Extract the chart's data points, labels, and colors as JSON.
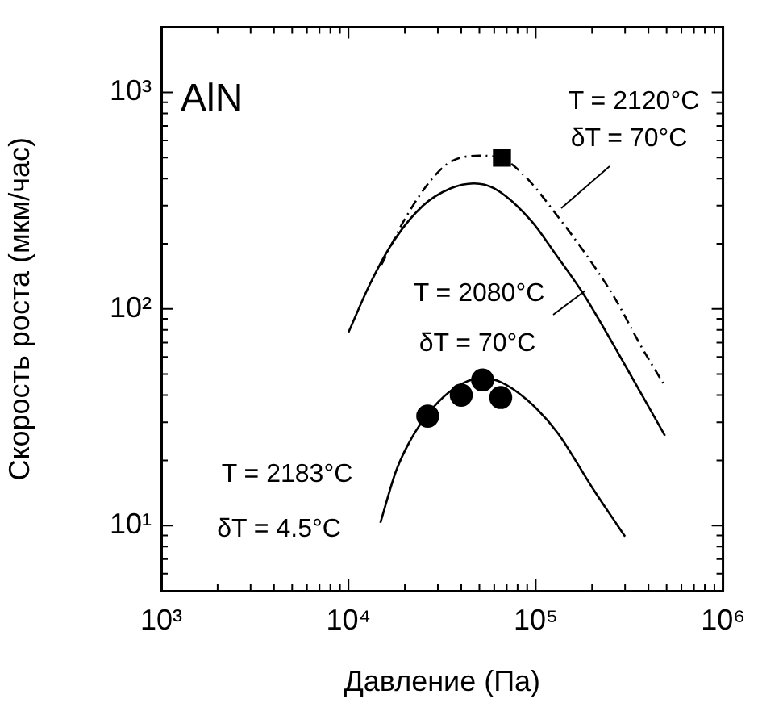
{
  "chart_data": {
    "type": "line",
    "xlabel": "Давление (Па)",
    "ylabel": "Скорость роста (мкм/час)",
    "log": "xy",
    "xlim": [
      1000,
      1000000
    ],
    "ylim": [
      5,
      2000
    ],
    "xticks": [
      {
        "value": 1000,
        "label": "10³"
      },
      {
        "value": 2000,
        "label": null
      },
      {
        "value": 3000,
        "label": null
      },
      {
        "value": 4000,
        "label": null
      },
      {
        "value": 5000,
        "label": null
      },
      {
        "value": 6000,
        "label": null
      },
      {
        "value": 7000,
        "label": null
      },
      {
        "value": 8000,
        "label": null
      },
      {
        "value": 9000,
        "label": null
      },
      {
        "value": 10000,
        "label": "10⁴"
      },
      {
        "value": 20000,
        "label": null
      },
      {
        "value": 30000,
        "label": null
      },
      {
        "value": 40000,
        "label": null
      },
      {
        "value": 50000,
        "label": null
      },
      {
        "value": 60000,
        "label": null
      },
      {
        "value": 70000,
        "label": null
      },
      {
        "value": 80000,
        "label": null
      },
      {
        "value": 90000,
        "label": null
      },
      {
        "value": 100000,
        "label": "10⁵"
      },
      {
        "value": 200000,
        "label": null
      },
      {
        "value": 300000,
        "label": null
      },
      {
        "value": 400000,
        "label": null
      },
      {
        "value": 500000,
        "label": null
      },
      {
        "value": 600000,
        "label": null
      },
      {
        "value": 700000,
        "label": null
      },
      {
        "value": 800000,
        "label": null
      },
      {
        "value": 900000,
        "label": null
      },
      {
        "value": 1000000,
        "label": "10⁶"
      }
    ],
    "yticks": [
      {
        "value": 5,
        "label": null
      },
      {
        "value": 6,
        "label": null
      },
      {
        "value": 7,
        "label": null
      },
      {
        "value": 8,
        "label": null
      },
      {
        "value": 9,
        "label": null
      },
      {
        "value": 10,
        "label": "10¹"
      },
      {
        "value": 20,
        "label": null
      },
      {
        "value": 30,
        "label": null
      },
      {
        "value": 40,
        "label": null
      },
      {
        "value": 50,
        "label": null
      },
      {
        "value": 60,
        "label": null
      },
      {
        "value": 70,
        "label": null
      },
      {
        "value": 80,
        "label": null
      },
      {
        "value": 90,
        "label": null
      },
      {
        "value": 100,
        "label": "10²"
      },
      {
        "value": 200,
        "label": null
      },
      {
        "value": 300,
        "label": null
      },
      {
        "value": 400,
        "label": null
      },
      {
        "value": 500,
        "label": null
      },
      {
        "value": 600,
        "label": null
      },
      {
        "value": 700,
        "label": null
      },
      {
        "value": 800,
        "label": null
      },
      {
        "value": 900,
        "label": null
      },
      {
        "value": 1000,
        "label": "10³"
      },
      {
        "value": 2000,
        "label": null
      }
    ],
    "annotations": [
      "AlN",
      "T = 2120°C",
      "δT = 70°C",
      "T = 2080°C",
      "δT = 70°C",
      "T = 2183°C",
      "δT = 4.5°C"
    ],
    "series": [
      {
        "type": "line",
        "color": "#000000",
        "marker": "none",
        "line_style": "solid",
        "x": [
          10000,
          13000,
          17300,
          25000,
          35000,
          46800,
          60000,
          94000,
          130000,
          180000,
          300000,
          490000
        ],
        "values": [
          78,
          130,
          204,
          300,
          360,
          380,
          360,
          257,
          175,
          117,
          55,
          26
        ]
      },
      {
        "type": "line",
        "color": "#000000",
        "marker": "none",
        "line_style": "dashed",
        "x": [
          15000,
          20000,
          28000,
          35500,
          50000,
          66000,
          90000,
          130000,
          180000,
          260000,
          370000,
          490000
        ],
        "values": [
          160,
          260,
          400,
          480,
          510,
          495,
          400,
          270,
          185,
          115,
          66,
          44
        ]
      },
      {
        "type": "line",
        "color": "#000000",
        "marker": "none",
        "line_style": "solid",
        "x": [
          14800,
          18000,
          22700,
          30000,
          40000,
          52000,
          65000,
          90000,
          130000,
          200000,
          300000
        ],
        "values": [
          10.3,
          18,
          27,
          37,
          45,
          48,
          46,
          38,
          27,
          15,
          8.9
        ]
      },
      {
        "type": "scatter",
        "color": "#000000",
        "marker": "circle",
        "x": [
          26500,
          40000,
          52000,
          65000
        ],
        "values": [
          32,
          40,
          47,
          39
        ]
      },
      {
        "type": "scatter",
        "color": "#000000",
        "marker": "square",
        "x": [
          66000
        ],
        "values": [
          500
        ]
      }
    ]
  }
}
